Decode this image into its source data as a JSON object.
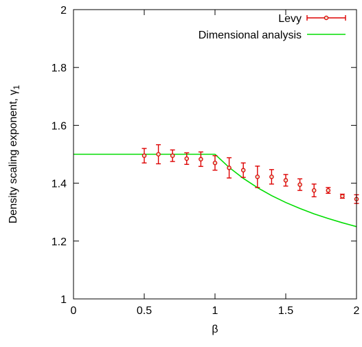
{
  "chart_data": {
    "type": "scatter",
    "xlabel": "β",
    "ylabel": "Density scaling exponent, γ",
    "ylabel_sub": "1",
    "xlim": [
      0,
      2
    ],
    "ylim": [
      1,
      2
    ],
    "xticks": [
      0,
      0.5,
      1,
      1.5,
      2
    ],
    "xtick_labels": [
      "0",
      "0.5",
      "1",
      "1.5",
      "2"
    ],
    "yticks": [
      1,
      1.2,
      1.4,
      1.6,
      1.8,
      2
    ],
    "ytick_labels": [
      "1",
      "1.2",
      "1.4",
      "1.6",
      "1.8",
      "2"
    ],
    "grid": false,
    "legend_position": "top-right",
    "series": [
      {
        "name": "Levy",
        "kind": "points-with-errorbars",
        "color": "#dd0000",
        "x": [
          0.5,
          0.6,
          0.7,
          0.8,
          0.9,
          1.0,
          1.1,
          1.2,
          1.3,
          1.4,
          1.5,
          1.6,
          1.7,
          1.8,
          1.9,
          2.0
        ],
        "y": [
          1.495,
          1.5,
          1.495,
          1.485,
          1.483,
          1.47,
          1.453,
          1.445,
          1.422,
          1.422,
          1.41,
          1.395,
          1.375,
          1.375,
          1.355,
          1.345
        ],
        "err": [
          0.025,
          0.033,
          0.02,
          0.02,
          0.025,
          0.025,
          0.035,
          0.025,
          0.037,
          0.025,
          0.02,
          0.02,
          0.022,
          0.01,
          0.007,
          0.015
        ]
      },
      {
        "name": "Dimensional analysis",
        "kind": "line",
        "color": "#00dd00",
        "x": [
          0,
          0.5,
          0.95,
          1.0,
          1.1,
          1.2,
          1.3,
          1.4,
          1.5,
          1.6,
          1.7,
          1.8,
          1.9,
          2.0
        ],
        "y": [
          1.5,
          1.5,
          1.5,
          1.5,
          1.4545,
          1.4167,
          1.3846,
          1.3571,
          1.3333,
          1.3125,
          1.2941,
          1.2778,
          1.2632,
          1.25
        ]
      }
    ]
  }
}
